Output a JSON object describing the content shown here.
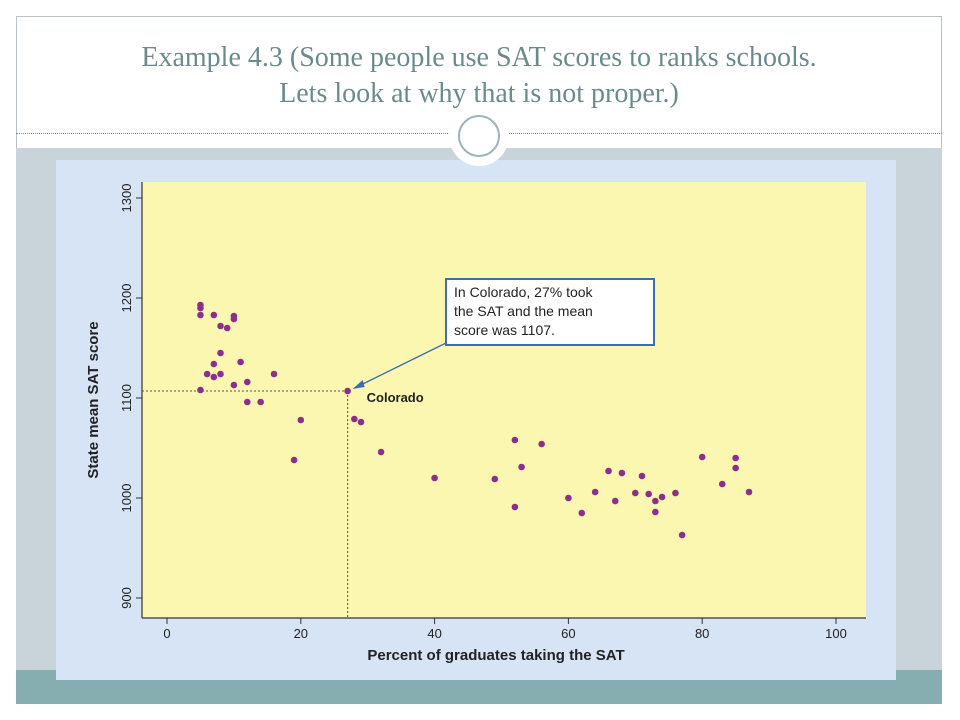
{
  "slide": {
    "title_line1": "Example 4.3 (Some people use SAT scores to ranks schools.",
    "title_line2": "Lets look at why that is not proper.)"
  },
  "colors": {
    "plot_background": "#fbf7b0",
    "figure_background": "#d6e4f5",
    "point": "#8b2f8c",
    "callout_border": "#3b6fb5",
    "title": "#6b8a8c"
  },
  "chart_data": {
    "type": "scatter",
    "xlabel": "Percent of graduates taking the SAT",
    "ylabel": "State mean SAT score",
    "xlim": [
      0,
      100
    ],
    "ylim": [
      900,
      1300
    ],
    "x_ticks": [
      "0",
      "20",
      "40",
      "60",
      "80",
      "100"
    ],
    "y_ticks": [
      "900",
      "1000",
      "1100",
      "1200",
      "1300"
    ],
    "grid": false,
    "points": [
      {
        "x": 5,
        "y": 1193
      },
      {
        "x": 5,
        "y": 1190
      },
      {
        "x": 5,
        "y": 1183
      },
      {
        "x": 7,
        "y": 1183
      },
      {
        "x": 8,
        "y": 1172
      },
      {
        "x": 9,
        "y": 1170
      },
      {
        "x": 10,
        "y": 1182
      },
      {
        "x": 10,
        "y": 1179
      },
      {
        "x": 8,
        "y": 1145
      },
      {
        "x": 7,
        "y": 1134
      },
      {
        "x": 11,
        "y": 1136
      },
      {
        "x": 6,
        "y": 1124
      },
      {
        "x": 7,
        "y": 1121
      },
      {
        "x": 8,
        "y": 1124
      },
      {
        "x": 10,
        "y": 1113
      },
      {
        "x": 12,
        "y": 1116
      },
      {
        "x": 5,
        "y": 1108
      },
      {
        "x": 16,
        "y": 1124
      },
      {
        "x": 12,
        "y": 1096
      },
      {
        "x": 14,
        "y": 1096
      },
      {
        "x": 20,
        "y": 1078
      },
      {
        "x": 19,
        "y": 1038
      },
      {
        "x": 27,
        "y": 1107
      },
      {
        "x": 28,
        "y": 1079
      },
      {
        "x": 29,
        "y": 1076
      },
      {
        "x": 32,
        "y": 1046
      },
      {
        "x": 40,
        "y": 1020
      },
      {
        "x": 49,
        "y": 1019
      },
      {
        "x": 52,
        "y": 1058
      },
      {
        "x": 53,
        "y": 1031
      },
      {
        "x": 52,
        "y": 991
      },
      {
        "x": 56,
        "y": 1054
      },
      {
        "x": 60,
        "y": 1000
      },
      {
        "x": 62,
        "y": 985
      },
      {
        "x": 64,
        "y": 1006
      },
      {
        "x": 66,
        "y": 1027
      },
      {
        "x": 67,
        "y": 997
      },
      {
        "x": 68,
        "y": 1025
      },
      {
        "x": 70,
        "y": 1005
      },
      {
        "x": 71,
        "y": 1022
      },
      {
        "x": 72,
        "y": 1004
      },
      {
        "x": 73,
        "y": 997
      },
      {
        "x": 73,
        "y": 986
      },
      {
        "x": 74,
        "y": 1001
      },
      {
        "x": 76,
        "y": 1005
      },
      {
        "x": 77,
        "y": 963
      },
      {
        "x": 80,
        "y": 1041
      },
      {
        "x": 83,
        "y": 1014
      },
      {
        "x": 85,
        "y": 1040
      },
      {
        "x": 85,
        "y": 1030
      },
      {
        "x": 87,
        "y": 1006
      }
    ],
    "highlight": {
      "label": "Colorado",
      "x": 27,
      "y": 1107
    },
    "annotation": {
      "lines": [
        "In Colorado, 27% took",
        "the SAT and the mean",
        "score was 1107."
      ]
    }
  }
}
